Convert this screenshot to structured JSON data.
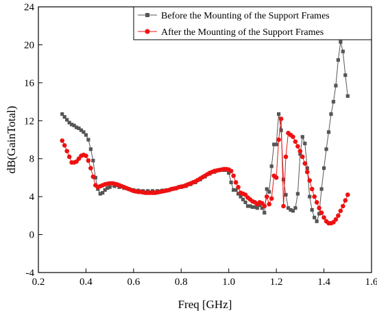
{
  "chart_data": {
    "type": "line",
    "title": "",
    "xlabel": "Freq [GHz]",
    "ylabel": "dB(GainTotal)",
    "xlim": [
      0.2,
      1.6
    ],
    "ylim": [
      -4,
      24
    ],
    "xticks": [
      "0.2",
      "0.4",
      "0.6",
      "0.8",
      "1.0",
      "1.2",
      "1.4",
      "1.6"
    ],
    "yticks": [
      "-4",
      "0",
      "4",
      "8",
      "12",
      "16",
      "20",
      "24"
    ],
    "grid": false,
    "legend_position": "top-right",
    "series": [
      {
        "name": "Before the Mounting of the Support Frames",
        "color": "#555555",
        "marker": "square",
        "x": [
          0.3,
          0.31,
          0.32,
          0.33,
          0.34,
          0.35,
          0.36,
          0.37,
          0.38,
          0.39,
          0.4,
          0.41,
          0.42,
          0.43,
          0.44,
          0.45,
          0.46,
          0.47,
          0.48,
          0.49,
          0.5,
          0.52,
          0.54,
          0.56,
          0.58,
          0.6,
          0.62,
          0.64,
          0.66,
          0.68,
          0.7,
          0.72,
          0.74,
          0.76,
          0.78,
          0.8,
          0.82,
          0.84,
          0.86,
          0.88,
          0.9,
          0.92,
          0.94,
          0.96,
          0.98,
          0.99,
          1.0,
          1.01,
          1.02,
          1.03,
          1.04,
          1.05,
          1.06,
          1.07,
          1.08,
          1.09,
          1.1,
          1.11,
          1.12,
          1.13,
          1.14,
          1.15,
          1.16,
          1.17,
          1.18,
          1.19,
          1.2,
          1.21,
          1.22,
          1.23,
          1.24,
          1.25,
          1.26,
          1.27,
          1.28,
          1.29,
          1.3,
          1.31,
          1.32,
          1.33,
          1.34,
          1.35,
          1.36,
          1.37,
          1.38,
          1.39,
          1.4,
          1.41,
          1.42,
          1.43,
          1.44,
          1.45,
          1.46,
          1.47,
          1.48,
          1.49,
          1.5
        ],
        "y": [
          12.7,
          12.4,
          12.1,
          11.8,
          11.6,
          11.5,
          11.3,
          11.2,
          11.0,
          10.8,
          10.5,
          10.0,
          9.0,
          7.8,
          6.0,
          4.8,
          4.3,
          4.4,
          4.7,
          4.9,
          5.0,
          5.1,
          5.0,
          4.9,
          4.8,
          4.7,
          4.65,
          4.6,
          4.6,
          4.6,
          4.6,
          4.65,
          4.7,
          4.8,
          4.9,
          5.0,
          5.1,
          5.3,
          5.5,
          5.8,
          6.1,
          6.4,
          6.6,
          6.8,
          6.8,
          6.8,
          6.5,
          5.5,
          4.7,
          4.7,
          4.3,
          4.0,
          3.7,
          3.4,
          3.0,
          3.0,
          2.9,
          2.9,
          2.8,
          3.1,
          2.8,
          2.3,
          4.8,
          4.5,
          7.2,
          9.5,
          9.5,
          12.7,
          11.0,
          5.8,
          4.2,
          2.8,
          2.6,
          2.5,
          2.8,
          4.3,
          8.5,
          10.3,
          9.6,
          7.0,
          4.0,
          2.6,
          1.8,
          1.4,
          2.2,
          4.8,
          7.0,
          9.0,
          10.8,
          12.7,
          14.0,
          15.7,
          18.4,
          20.3,
          19.3,
          16.8,
          14.6
        ]
      },
      {
        "name": "After the Mounting of the Support Frames",
        "color": "#ee1111",
        "marker": "circle",
        "x": [
          0.3,
          0.31,
          0.32,
          0.33,
          0.34,
          0.35,
          0.36,
          0.37,
          0.38,
          0.39,
          0.4,
          0.41,
          0.42,
          0.43,
          0.44,
          0.45,
          0.46,
          0.47,
          0.48,
          0.49,
          0.5,
          0.51,
          0.52,
          0.53,
          0.54,
          0.55,
          0.56,
          0.57,
          0.58,
          0.59,
          0.6,
          0.61,
          0.62,
          0.63,
          0.64,
          0.65,
          0.66,
          0.67,
          0.68,
          0.69,
          0.7,
          0.71,
          0.72,
          0.73,
          0.74,
          0.75,
          0.76,
          0.77,
          0.78,
          0.79,
          0.8,
          0.81,
          0.82,
          0.83,
          0.84,
          0.85,
          0.86,
          0.87,
          0.88,
          0.89,
          0.9,
          0.91,
          0.92,
          0.93,
          0.94,
          0.95,
          0.96,
          0.97,
          0.98,
          0.99,
          1.0,
          1.01,
          1.02,
          1.03,
          1.04,
          1.05,
          1.06,
          1.07,
          1.08,
          1.09,
          1.1,
          1.11,
          1.12,
          1.13,
          1.14,
          1.15,
          1.16,
          1.17,
          1.18,
          1.19,
          1.2,
          1.21,
          1.22,
          1.23,
          1.24,
          1.25,
          1.26,
          1.27,
          1.28,
          1.29,
          1.3,
          1.31,
          1.32,
          1.33,
          1.34,
          1.35,
          1.36,
          1.37,
          1.38,
          1.39,
          1.4,
          1.41,
          1.42,
          1.43,
          1.44,
          1.45,
          1.46,
          1.47,
          1.48,
          1.49,
          1.5
        ],
        "y": [
          9.9,
          9.4,
          8.8,
          8.2,
          7.6,
          7.6,
          7.7,
          8.0,
          8.3,
          8.4,
          8.3,
          7.8,
          7.0,
          6.1,
          5.2,
          5.0,
          5.1,
          5.2,
          5.3,
          5.35,
          5.4,
          5.4,
          5.35,
          5.3,
          5.2,
          5.1,
          5.0,
          4.9,
          4.8,
          4.7,
          4.6,
          4.55,
          4.5,
          4.5,
          4.45,
          4.4,
          4.4,
          4.4,
          4.4,
          4.4,
          4.45,
          4.5,
          4.55,
          4.6,
          4.65,
          4.7,
          4.8,
          4.85,
          4.9,
          5.0,
          5.05,
          5.1,
          5.2,
          5.3,
          5.4,
          5.5,
          5.6,
          5.75,
          5.9,
          6.05,
          6.2,
          6.35,
          6.5,
          6.6,
          6.7,
          6.75,
          6.8,
          6.85,
          6.9,
          6.9,
          6.85,
          6.7,
          6.2,
          5.5,
          5.0,
          4.4,
          4.3,
          4.2,
          3.9,
          3.7,
          3.5,
          3.4,
          3.2,
          3.4,
          3.3,
          3.0,
          4.0,
          3.2,
          3.8,
          6.2,
          6.0,
          10.0,
          12.2,
          3.0,
          8.2,
          10.7,
          10.5,
          10.3,
          9.8,
          9.3,
          8.8,
          8.2,
          7.5,
          6.6,
          5.7,
          4.8,
          4.0,
          3.4,
          2.8,
          2.3,
          1.8,
          1.4,
          1.2,
          1.2,
          1.3,
          1.6,
          2.0,
          2.5,
          3.0,
          3.6,
          4.2
        ]
      }
    ]
  }
}
